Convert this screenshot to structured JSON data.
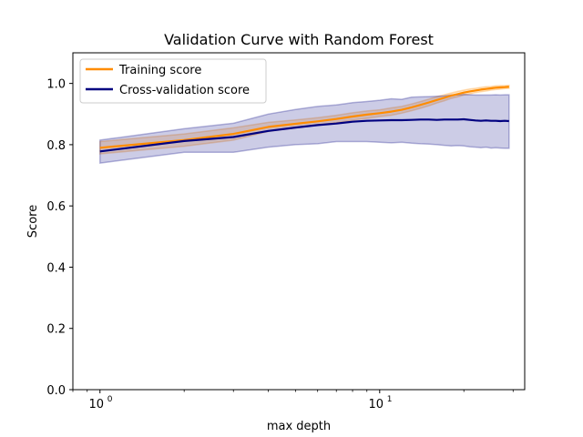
{
  "chart_data": {
    "type": "line",
    "title": "Validation Curve with Random Forest",
    "xlabel": "max depth",
    "ylabel": "Score",
    "xscale": "log",
    "xlim": [
      0.8,
      33
    ],
    "ylim": [
      0.0,
      1.1
    ],
    "yticks": [
      "0.0",
      "0.2",
      "0.4",
      "0.6",
      "0.8",
      "1.0"
    ],
    "xticks": [
      {
        "value": 1,
        "base": "10",
        "exp": "0"
      },
      {
        "value": 10,
        "base": "10",
        "exp": "1"
      }
    ],
    "grid": false,
    "legend_position": "top-left",
    "x": [
      1,
      2,
      3,
      4,
      5,
      6,
      7,
      8,
      9,
      10,
      11,
      12,
      13,
      14,
      15,
      16,
      17,
      18,
      19,
      20,
      21,
      22,
      23,
      24,
      25,
      26,
      27,
      28,
      29
    ],
    "series": [
      {
        "name": "Training score",
        "color": "#ff8c00",
        "band_opacity": 0.2,
        "values": [
          0.79,
          0.815,
          0.835,
          0.858,
          0.868,
          0.876,
          0.884,
          0.892,
          0.898,
          0.903,
          0.908,
          0.914,
          0.922,
          0.93,
          0.938,
          0.946,
          0.953,
          0.96,
          0.965,
          0.97,
          0.974,
          0.977,
          0.98,
          0.982,
          0.984,
          0.986,
          0.987,
          0.988,
          0.989
        ],
        "band": [
          [
            0.77,
            0.81
          ],
          [
            0.795,
            0.835
          ],
          [
            0.815,
            0.855
          ],
          [
            0.843,
            0.873
          ],
          [
            0.855,
            0.881
          ],
          [
            0.864,
            0.888
          ],
          [
            0.872,
            0.896
          ],
          [
            0.88,
            0.904
          ],
          [
            0.886,
            0.91
          ],
          [
            0.892,
            0.914
          ],
          [
            0.896,
            0.92
          ],
          [
            0.903,
            0.925
          ],
          [
            0.911,
            0.933
          ],
          [
            0.919,
            0.941
          ],
          [
            0.927,
            0.949
          ],
          [
            0.936,
            0.956
          ],
          [
            0.943,
            0.963
          ],
          [
            0.951,
            0.969
          ],
          [
            0.956,
            0.974
          ],
          [
            0.962,
            0.978
          ],
          [
            0.966,
            0.982
          ],
          [
            0.97,
            0.984
          ],
          [
            0.973,
            0.987
          ],
          [
            0.975,
            0.989
          ],
          [
            0.978,
            0.99
          ],
          [
            0.98,
            0.992
          ],
          [
            0.981,
            0.993
          ],
          [
            0.983,
            0.993
          ],
          [
            0.984,
            0.994
          ]
        ]
      },
      {
        "name": "Cross-validation score",
        "color": "#000080",
        "band_opacity": 0.2,
        "values": [
          0.778,
          0.812,
          0.825,
          0.845,
          0.856,
          0.864,
          0.869,
          0.875,
          0.878,
          0.879,
          0.88,
          0.88,
          0.881,
          0.882,
          0.882,
          0.881,
          0.882,
          0.882,
          0.882,
          0.883,
          0.881,
          0.879,
          0.878,
          0.879,
          0.878,
          0.878,
          0.877,
          0.878,
          0.877
        ],
        "band": [
          [
            0.74,
            0.815
          ],
          [
            0.775,
            0.852
          ],
          [
            0.775,
            0.87
          ],
          [
            0.792,
            0.9
          ],
          [
            0.8,
            0.915
          ],
          [
            0.803,
            0.925
          ],
          [
            0.81,
            0.93
          ],
          [
            0.81,
            0.937
          ],
          [
            0.81,
            0.941
          ],
          [
            0.808,
            0.945
          ],
          [
            0.806,
            0.95
          ],
          [
            0.808,
            0.948
          ],
          [
            0.805,
            0.955
          ],
          [
            0.803,
            0.956
          ],
          [
            0.802,
            0.957
          ],
          [
            0.8,
            0.958
          ],
          [
            0.798,
            0.959
          ],
          [
            0.796,
            0.962
          ],
          [
            0.797,
            0.963
          ],
          [
            0.796,
            0.964
          ],
          [
            0.793,
            0.963
          ],
          [
            0.792,
            0.962
          ],
          [
            0.79,
            0.962
          ],
          [
            0.792,
            0.962
          ],
          [
            0.789,
            0.962
          ],
          [
            0.79,
            0.963
          ],
          [
            0.789,
            0.962
          ],
          [
            0.788,
            0.963
          ],
          [
            0.788,
            0.963
          ]
        ]
      }
    ]
  }
}
